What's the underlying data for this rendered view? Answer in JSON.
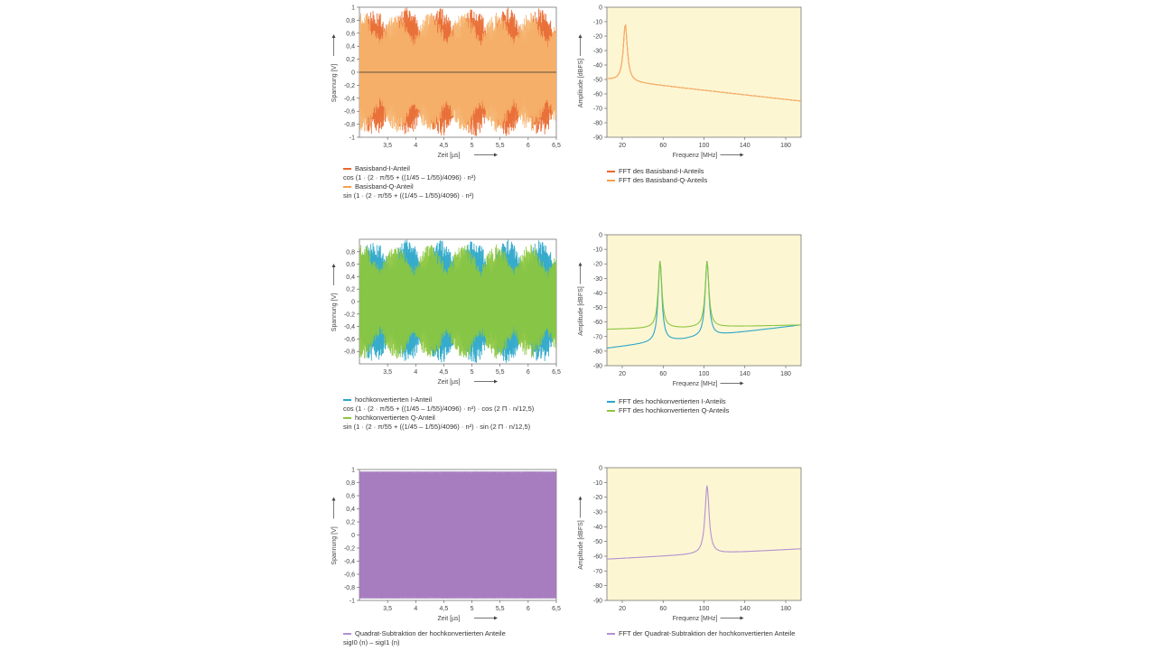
{
  "chart_data": [
    {
      "type": "line",
      "panel": "time-1",
      "xlabel": "Zeit [µs]",
      "ylabel": "Spannung [V]",
      "xlim": [
        3.0,
        6.5
      ],
      "ylim": [
        -1,
        1
      ],
      "xticks": [
        "3,5",
        "4",
        "4,5",
        "5",
        "5,5",
        "6",
        "6,5"
      ],
      "xtick_values": [
        3.5,
        4,
        4.5,
        5,
        5.5,
        6,
        6.5
      ],
      "yticks": [
        "1",
        "0,8",
        "0,6",
        "0,4",
        "0,2",
        "0",
        "-0,2",
        "-0,4",
        "-0,6",
        "-0,8",
        "-1"
      ],
      "ytick_values": [
        1,
        0.8,
        0.6,
        0.4,
        0.2,
        0,
        -0.2,
        -0.4,
        -0.6,
        -0.8,
        -1
      ],
      "background": "#ffffff",
      "series": [
        {
          "name": "Basisband-I-Anteil",
          "color": "#e8692e",
          "carrier_mhz": 22,
          "amplitude": 1
        },
        {
          "name": "Basisband-Q-Anteil",
          "color": "#f5b26b",
          "carrier_mhz": 22,
          "amplitude": 1
        }
      ],
      "legend": [
        {
          "label": "Basisband-I-Anteil",
          "color": "#e8692e",
          "formula": "cos (1 · (2 · π/55 + ((1/45 – 1/55)/4096) · n²)"
        },
        {
          "label": "Basisband-Q-Anteil",
          "color": "#f5a04d",
          "formula": "sin (1 · (2 · π/55 + ((1/45 – 1/55)/4096) · n²)"
        }
      ]
    },
    {
      "type": "line",
      "panel": "fft-1",
      "xlabel": "Frequenz [MHz]",
      "ylabel": "Amplitude [dBFS]",
      "xlim": [
        5,
        195
      ],
      "ylim": [
        -90,
        0
      ],
      "xticks": [
        "20",
        "60",
        "100",
        "140",
        "180"
      ],
      "xtick_values": [
        20,
        60,
        100,
        140,
        180
      ],
      "yticks": [
        "0",
        "-10",
        "-20",
        "-30",
        "-40",
        "-50",
        "-60",
        "-70",
        "-80",
        "-90"
      ],
      "ytick_values": [
        0,
        -10,
        -20,
        -30,
        -40,
        -50,
        -60,
        -70,
        -80,
        -90
      ],
      "background": "#fdf6d3",
      "series": [
        {
          "name": "FFT des Basisband-I-Anteils",
          "color": "#e8692e",
          "peak_mhz": 23,
          "peak_db": -12,
          "start_db": -50,
          "end_db": -65
        },
        {
          "name": "FFT des Basisband-Q-Anteils",
          "color": "#f5b26b",
          "peak_mhz": 23,
          "peak_db": -12,
          "start_db": -50,
          "end_db": -65
        }
      ],
      "legend": [
        {
          "label": "FFT des Basisband-I-Anteils",
          "color": "#e8692e"
        },
        {
          "label": "FFT des Basisband-Q-Anteils",
          "color": "#f5a04d"
        }
      ]
    },
    {
      "type": "line",
      "panel": "time-2",
      "xlabel": "Zeit [µs]",
      "ylabel": "Spannung [V]",
      "xlim": [
        3.0,
        6.5
      ],
      "ylim": [
        -1,
        1
      ],
      "xticks": [
        "3,5",
        "4",
        "4,5",
        "5",
        "5,5",
        "6",
        "6,5"
      ],
      "xtick_values": [
        3.5,
        4,
        4.5,
        5,
        5.5,
        6,
        6.5
      ],
      "yticks": [
        "0,8",
        "0,6",
        "0,4",
        "0,2",
        "0",
        "-0,2",
        "-0,4",
        "-0,6",
        "-0,8"
      ],
      "ytick_values": [
        0.8,
        0.6,
        0.4,
        0.2,
        0,
        -0.2,
        -0.4,
        -0.6,
        -0.8
      ],
      "background": "#ffffff",
      "series": [
        {
          "name": "hochkonvertierten I-Anteil",
          "color": "#2ba6c9",
          "carrier_mhz": 35,
          "amplitude": 1
        },
        {
          "name": "hochkonvertierten Q-Anteil",
          "color": "#8cc63f",
          "carrier_mhz": 35,
          "amplitude": 1
        }
      ],
      "legend": [
        {
          "label": "hochkonvertierten I-Anteil",
          "color": "#2ba6c9",
          "formula": "cos (1 · (2 · π/55 + ((1/45 – 1/55)/4096) · n²) · cos (2 Π · n/12,5)"
        },
        {
          "label": "hochkonvertierten Q-Anteil",
          "color": "#8cc63f",
          "formula": "sin (1 · (2 · π/55 + ((1/45 – 1/55)/4096) · n²) · sin (2 Π · n/12,5)"
        }
      ]
    },
    {
      "type": "line",
      "panel": "fft-2",
      "xlabel": "Frequenz [MHz]",
      "ylabel": "Amplitude [dBFS]",
      "xlim": [
        5,
        195
      ],
      "ylim": [
        -90,
        0
      ],
      "xticks": [
        "20",
        "60",
        "100",
        "140",
        "180"
      ],
      "xtick_values": [
        20,
        60,
        100,
        140,
        180
      ],
      "yticks": [
        "0",
        "-10",
        "-20",
        "-30",
        "-40",
        "-50",
        "-60",
        "-70",
        "-80",
        "-90"
      ],
      "ytick_values": [
        0,
        -10,
        -20,
        -30,
        -40,
        -50,
        -60,
        -70,
        -80,
        -90
      ],
      "background": "#fdf6d3",
      "series": [
        {
          "name": "FFT des hochkonvertierten I-Anteils",
          "color": "#2ba6c9",
          "peaks_mhz": [
            57,
            103
          ],
          "peak_db": -18,
          "start_db": -78,
          "end_db": -62
        },
        {
          "name": "FFT des hochkonvertierten Q-Anteils",
          "color": "#8cc63f",
          "peaks_mhz": [
            57,
            103
          ],
          "peak_db": -18,
          "start_db": -65,
          "end_db": -62
        }
      ],
      "legend": [
        {
          "label": "FFT des hochkonvertierten I-Anteils",
          "color": "#2ba6c9"
        },
        {
          "label": "FFT des hochkonvertierten Q-Anteils",
          "color": "#8cc63f"
        }
      ]
    },
    {
      "type": "line",
      "panel": "time-3",
      "xlabel": "Zeit [µs]",
      "ylabel": "Spannung [V]",
      "xlim": [
        3.0,
        6.5
      ],
      "ylim": [
        -1,
        1
      ],
      "xticks": [
        "3,5",
        "4",
        "4,5",
        "5",
        "5,5",
        "6",
        "6,5"
      ],
      "xtick_values": [
        3.5,
        4,
        4.5,
        5,
        5.5,
        6,
        6.5
      ],
      "yticks": [
        "1",
        "0,8",
        "0,6",
        "0,4",
        "0,2",
        "0",
        "-0,2",
        "-0,4",
        "-0,6",
        "-0,8",
        "-1"
      ],
      "ytick_values": [
        1,
        0.8,
        0.6,
        0.4,
        0.2,
        0,
        -0.2,
        -0.4,
        -0.6,
        -0.8,
        -1
      ],
      "background": "#ffffff",
      "series": [
        {
          "name": "Quadrat-Subtraktion der hochkonvertierten Anteile",
          "color": "#a67cbf",
          "carrier_mhz": 40,
          "amplitude": 1
        }
      ],
      "legend": [
        {
          "label": "Quadrat-Subtraktion der hochkonvertierten Anteile",
          "color": "#b491cf",
          "formula": "sigI0 (n) – sigI1 (n)"
        }
      ]
    },
    {
      "type": "line",
      "panel": "fft-3",
      "xlabel": "Frequenz [MHz]",
      "ylabel": "Amplitude [dBFS]",
      "xlim": [
        5,
        195
      ],
      "ylim": [
        -90,
        0
      ],
      "xticks": [
        "20",
        "60",
        "100",
        "140",
        "180"
      ],
      "xtick_values": [
        20,
        60,
        100,
        140,
        180
      ],
      "yticks": [
        "0",
        "-10",
        "-20",
        "-30",
        "-40",
        "-50",
        "-60",
        "-70",
        "-80",
        "-90"
      ],
      "ytick_values": [
        0,
        -10,
        -20,
        -30,
        -40,
        -50,
        -60,
        -70,
        -80,
        -90
      ],
      "background": "#fdf6d3",
      "series": [
        {
          "name": "FFT der Quadrat-Subtraktion der hochkonvertierten Anteile",
          "color": "#b491cf",
          "peak_mhz": 103,
          "peak_db": -12,
          "start_db": -62,
          "end_db": -55
        }
      ],
      "legend": [
        {
          "label": "FFT der Quadrat-Subtraktion der hochkonvertierten Anteile",
          "color": "#b491cf"
        }
      ]
    }
  ]
}
